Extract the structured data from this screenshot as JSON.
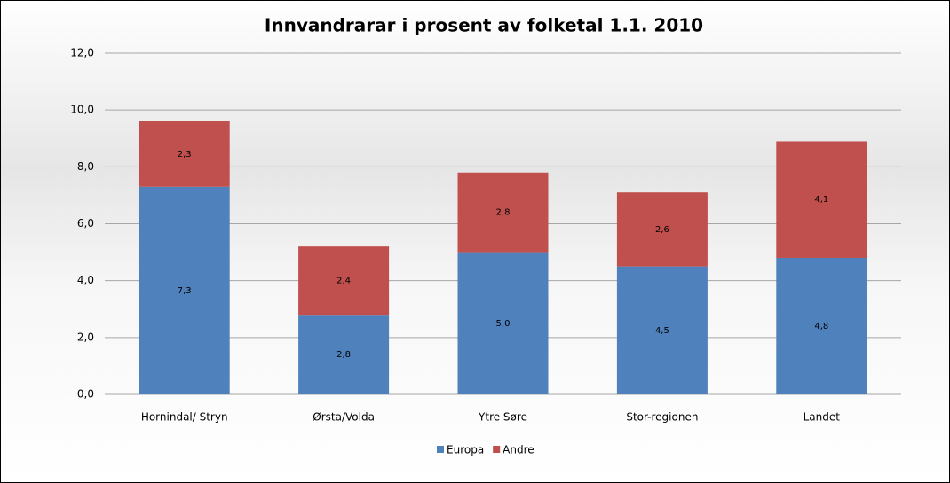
{
  "chart_data": {
    "type": "stacked-bar",
    "title": "Innvandrarar i prosent av folketal 1.1. 2010",
    "categories": [
      "Hornindal/ Stryn",
      "Ørsta/Volda",
      "Ytre Søre",
      "Stor-regionen",
      "Landet"
    ],
    "series": [
      {
        "name": "Europa",
        "color": "#4f81bd",
        "values": [
          7.3,
          2.8,
          5.0,
          4.5,
          4.8
        ],
        "value_labels": [
          "7,3",
          "2,8",
          "5,0",
          "4,5",
          "4,8"
        ]
      },
      {
        "name": "Andre",
        "color": "#c0504d",
        "values": [
          2.3,
          2.4,
          2.8,
          2.6,
          4.1
        ],
        "value_labels": [
          "2,3",
          "2,4",
          "2,8",
          "2,6",
          "4,1"
        ]
      }
    ],
    "ylim": [
      0,
      12
    ],
    "yticks": [
      {
        "value": 0,
        "label": "0,0"
      },
      {
        "value": 2,
        "label": "2,0"
      },
      {
        "value": 4,
        "label": "4,0"
      },
      {
        "value": 6,
        "label": "6,0"
      },
      {
        "value": 8,
        "label": "8,0"
      },
      {
        "value": 10,
        "label": "10,0"
      },
      {
        "value": 12,
        "label": "12,0"
      }
    ],
    "grid": true,
    "legend": "bottom"
  }
}
